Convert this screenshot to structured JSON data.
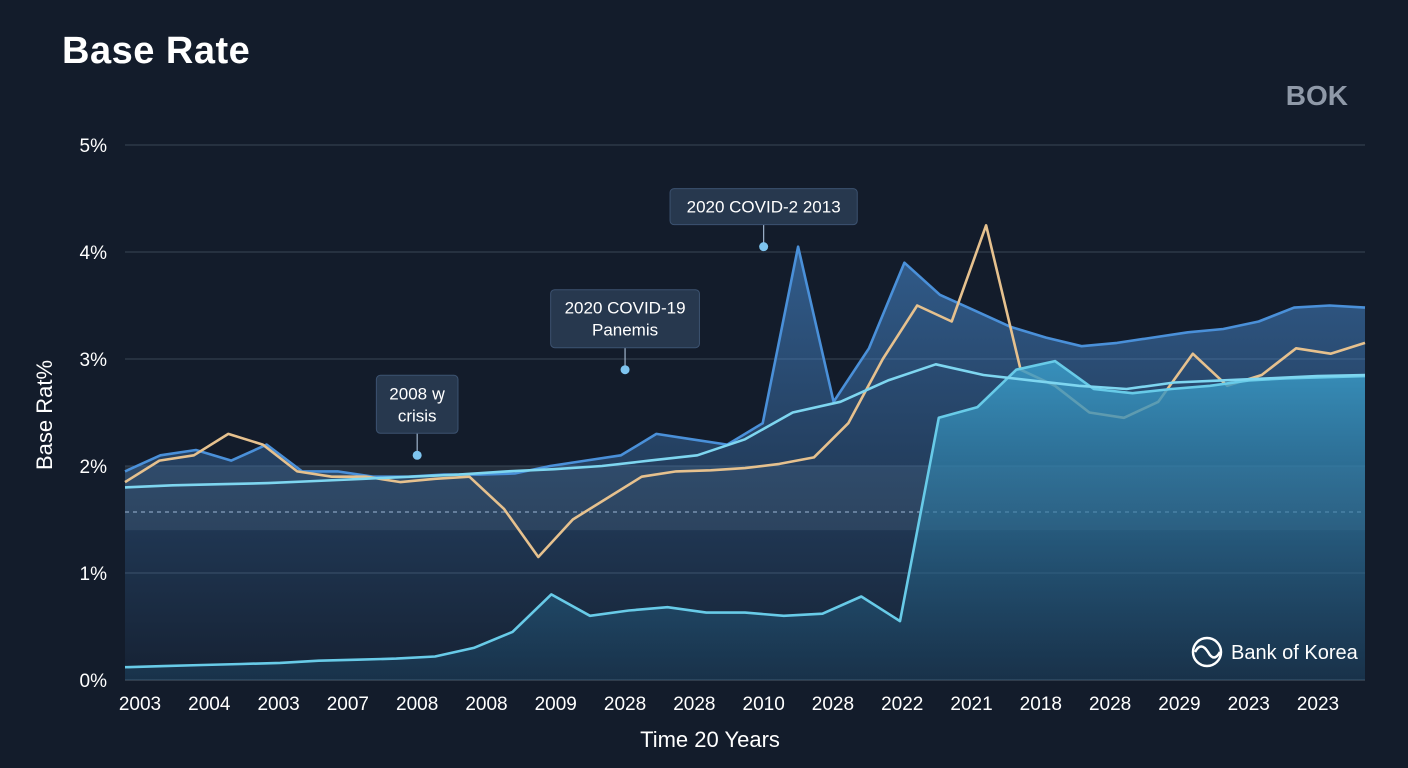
{
  "header": {
    "title": "Base Rate",
    "corner_label": "BOK",
    "source_label": "Bank of Korea"
  },
  "chart_data": {
    "type": "line",
    "title": "Base Rate",
    "xlabel": "Time 20 Years",
    "ylabel": "Base Rat%",
    "ylim": [
      0,
      5
    ],
    "yticks": [
      "0%",
      "1%",
      "2%",
      "3%",
      "4%",
      "5%"
    ],
    "x_tick_labels": [
      "2003",
      "2004",
      "2003",
      "2007",
      "2008",
      "2008",
      "2009",
      "2028",
      "2028",
      "2010",
      "2028",
      "2022",
      "2021",
      "2018",
      "2028",
      "2029",
      "2023",
      "2023"
    ],
    "grid": true,
    "reference_line": 1.57,
    "band": [
      1.4,
      2.0
    ],
    "annotations": [
      {
        "lines": [
          "2008 ꝡ",
          "crisis"
        ],
        "tick_index": 4,
        "value": 2.1
      },
      {
        "lines": [
          "2020 COVID-19",
          "Panemis"
        ],
        "tick_index": 7,
        "value": 2.9
      },
      {
        "lines": [
          "2020 COVID-2 2013"
        ],
        "tick_index": 9,
        "value": 4.05
      }
    ],
    "series": [
      {
        "style": "area",
        "color": "#4a90d9",
        "values": [
          1.95,
          2.1,
          2.15,
          2.05,
          2.2,
          1.95,
          1.95,
          1.9,
          1.9,
          1.92,
          1.92,
          1.93,
          2.0,
          2.05,
          2.1,
          2.3,
          2.25,
          2.2,
          2.4,
          4.05,
          2.6,
          3.1,
          3.9,
          3.6,
          3.45,
          3.3,
          3.2,
          3.12,
          3.15,
          3.2,
          3.25,
          3.28,
          3.35,
          3.48,
          3.5,
          3.48
        ]
      },
      {
        "style": "line",
        "color": "#e6c18e",
        "values": [
          1.85,
          2.05,
          2.1,
          2.3,
          2.2,
          1.95,
          1.9,
          1.9,
          1.85,
          1.88,
          1.9,
          1.6,
          1.15,
          1.5,
          1.7,
          1.9,
          1.95,
          1.96,
          1.98,
          2.02,
          2.08,
          2.4,
          3.0,
          3.5,
          3.35,
          4.25,
          2.9,
          2.75,
          2.5,
          2.45,
          2.6,
          3.05,
          2.75,
          2.85,
          3.1,
          3.05,
          3.15
        ]
      },
      {
        "style": "area",
        "color": "#68cbe8",
        "values": [
          0.12,
          0.13,
          0.14,
          0.15,
          0.16,
          0.18,
          0.19,
          0.2,
          0.22,
          0.3,
          0.45,
          0.8,
          0.6,
          0.65,
          0.68,
          0.63,
          0.63,
          0.6,
          0.62,
          0.78,
          0.55,
          2.45,
          2.55,
          2.9,
          2.98,
          2.72,
          2.68,
          2.72,
          2.75,
          2.8,
          2.82,
          2.83,
          2.84
        ]
      },
      {
        "style": "line",
        "color": "#7ed6f0",
        "values": [
          1.8,
          1.82,
          1.83,
          1.84,
          1.86,
          1.88,
          1.9,
          1.92,
          1.95,
          1.97,
          2.0,
          2.05,
          2.1,
          2.25,
          2.5,
          2.6,
          2.8,
          2.95,
          2.85,
          2.8,
          2.75,
          2.72,
          2.78,
          2.8,
          2.82,
          2.84,
          2.85
        ]
      }
    ]
  }
}
